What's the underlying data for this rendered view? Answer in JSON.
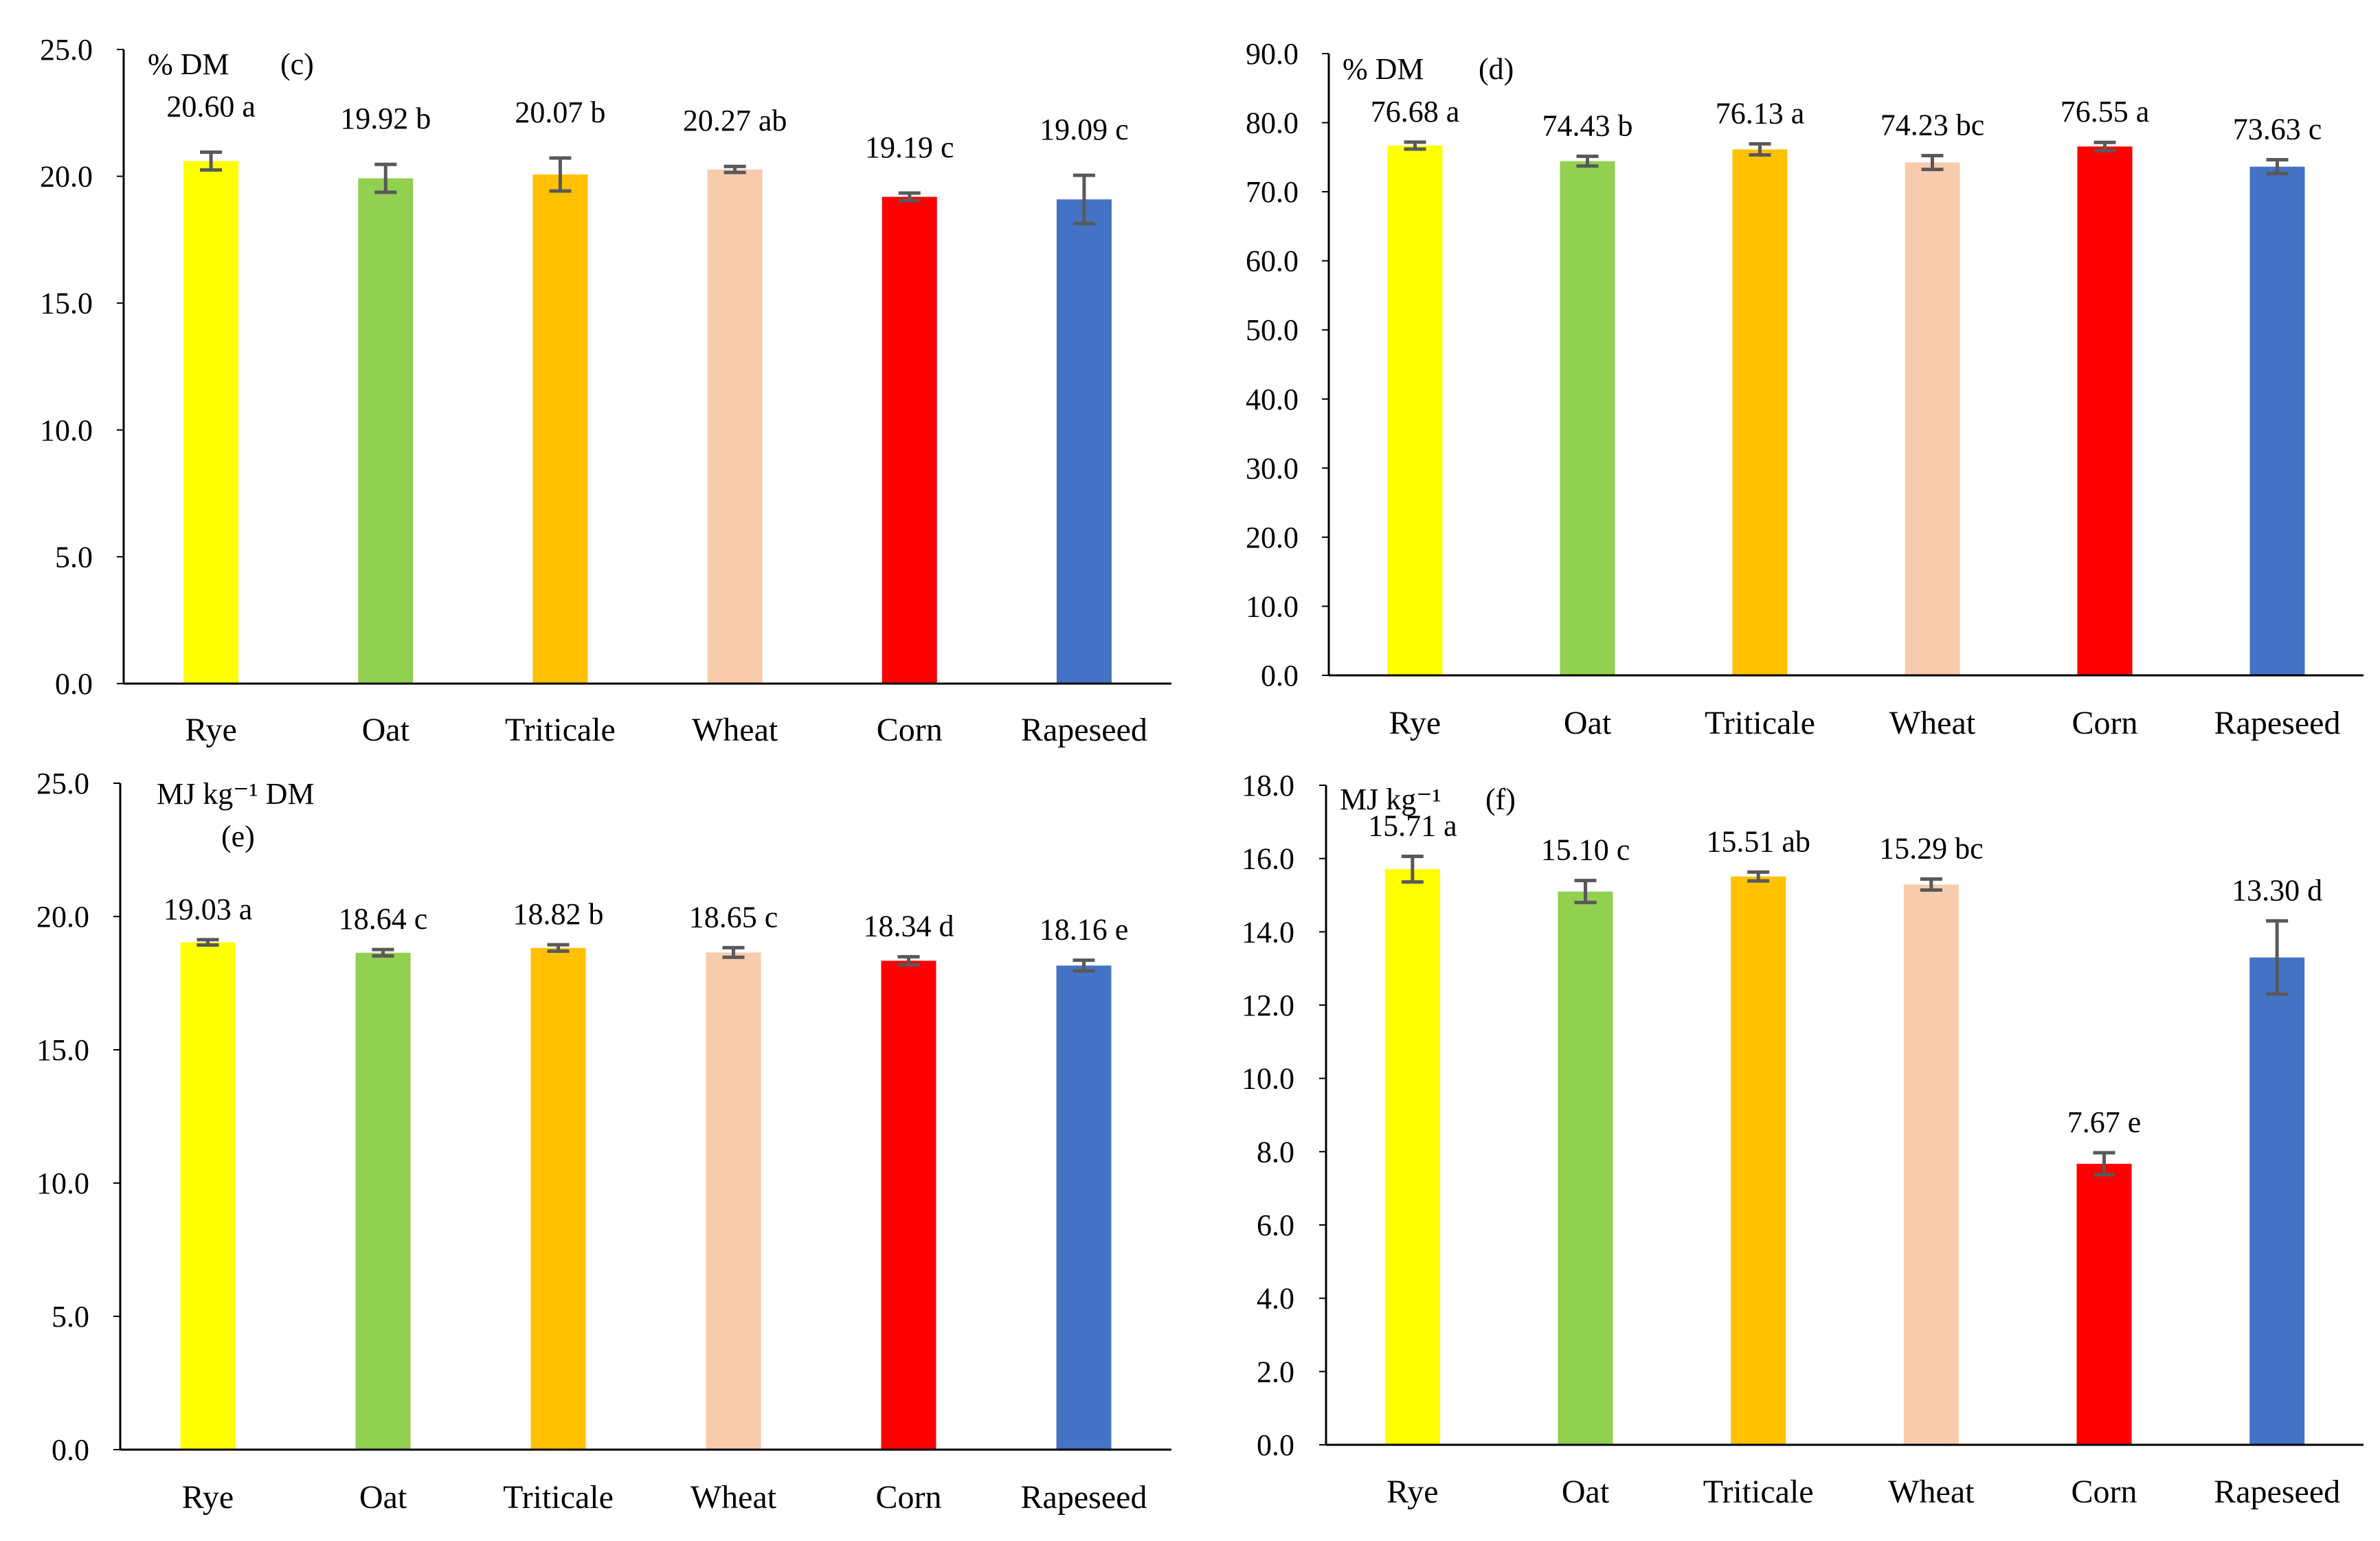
{
  "chart_data": [
    {
      "type": "bar",
      "panel": "(c)",
      "unit_label": "% DM",
      "categories": [
        "Rye",
        "Oat",
        "Triticale",
        "Wheat",
        "Corn",
        "Rapeseed"
      ],
      "values": [
        20.6,
        19.92,
        20.07,
        20.27,
        19.19,
        19.09
      ],
      "errors": [
        0.35,
        0.55,
        0.65,
        0.12,
        0.15,
        0.95
      ],
      "value_labels": [
        "20.60 a",
        "19.92 b",
        "20.07 b",
        "20.27 ab",
        "19.19 c",
        "19.09 c"
      ],
      "ylim": [
        0,
        25
      ],
      "yticks": [
        "0.0",
        "5.0",
        "10.0",
        "15.0",
        "20.0",
        "25.0"
      ],
      "grid": false
    },
    {
      "type": "bar",
      "panel": "(d)",
      "unit_label": "% DM",
      "categories": [
        "Rye",
        "Oat",
        "Triticale",
        "Wheat",
        "Corn",
        "Rapeseed"
      ],
      "values": [
        76.68,
        74.43,
        76.13,
        74.23,
        76.55,
        73.63
      ],
      "errors": [
        0.5,
        0.7,
        0.8,
        1.0,
        0.6,
        1.0
      ],
      "value_labels": [
        "76.68 a",
        "74.43 b",
        "76.13 a",
        "74.23 bc",
        "76.55 a",
        "73.63 c"
      ],
      "ylim": [
        0,
        90
      ],
      "yticks": [
        "0.0",
        "10.0",
        "20.0",
        "30.0",
        "40.0",
        "50.0",
        "60.0",
        "70.0",
        "80.0",
        "90.0"
      ],
      "grid": false
    },
    {
      "type": "bar",
      "panel": "(e)",
      "unit_label": "MJ kg⁻¹ DM",
      "categories": [
        "Rye",
        "Oat",
        "Triticale",
        "Wheat",
        "Corn",
        "Rapeseed"
      ],
      "values": [
        19.03,
        18.64,
        18.82,
        18.65,
        18.34,
        18.16
      ],
      "errors": [
        0.1,
        0.12,
        0.12,
        0.18,
        0.15,
        0.2
      ],
      "value_labels": [
        "19.03 a",
        "18.64 c",
        "18.82 b",
        "18.65 c",
        "18.34 d",
        "18.16 e"
      ],
      "ylim": [
        0,
        25
      ],
      "yticks": [
        "0.0",
        "5.0",
        "10.0",
        "15.0",
        "20.0",
        "25.0"
      ],
      "grid": false
    },
    {
      "type": "bar",
      "panel": "(f)",
      "unit_label": "MJ kg⁻¹",
      "categories": [
        "Rye",
        "Oat",
        "Triticale",
        "Wheat",
        "Corn",
        "Rapeseed"
      ],
      "values": [
        15.71,
        15.1,
        15.51,
        15.29,
        7.67,
        13.3
      ],
      "errors": [
        0.35,
        0.3,
        0.12,
        0.15,
        0.3,
        1.0
      ],
      "value_labels": [
        "15.71 a",
        "15.10 c",
        "15.51 ab",
        "15.29 bc",
        "7.67 e",
        "13.30 d"
      ],
      "ylim": [
        0,
        18
      ],
      "yticks": [
        "0.0",
        "2.0",
        "4.0",
        "6.0",
        "8.0",
        "10.0",
        "12.0",
        "14.0",
        "16.0",
        "18.0"
      ],
      "grid": false
    }
  ],
  "colors": {
    "Rye": "#ffff00",
    "Oat": "#92d050",
    "Triticale": "#ffc000",
    "Wheat": "#f8cbad",
    "Corn": "#ff0000",
    "Rapeseed": "#4472c4",
    "axis": "#000000",
    "error_bar": "#595959"
  }
}
